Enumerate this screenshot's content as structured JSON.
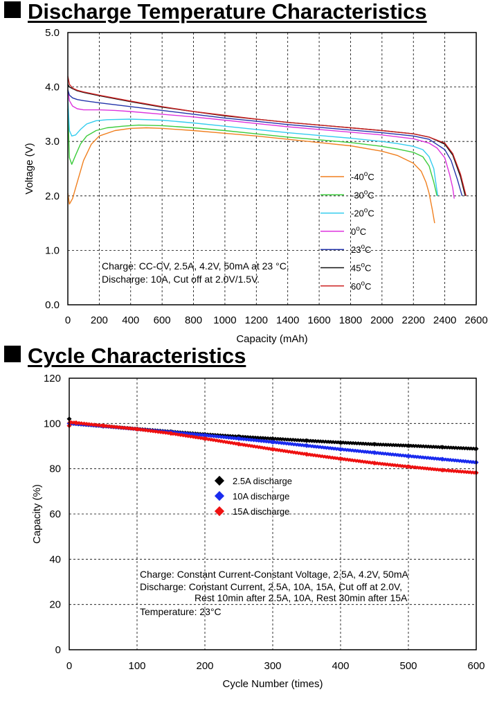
{
  "section1_title": "Discharge Temperature Characteristics",
  "section2_title": "Cycle Characteristics",
  "chart_data": [
    {
      "type": "line",
      "title": "Discharge Temperature Characteristics",
      "xlabel": "Capacity (mAh)",
      "ylabel": "Voltage (V)",
      "xlim": [
        0,
        2600
      ],
      "ylim": [
        0,
        5
      ],
      "xticks": [
        "0",
        "200",
        "400",
        "600",
        "800",
        "1000",
        "1200",
        "1400",
        "1600",
        "1800",
        "2000",
        "2200",
        "2400",
        "2600"
      ],
      "yticks": [
        "0.0",
        "1.0",
        "2.0",
        "3.0",
        "4.0",
        "5.0"
      ],
      "grid": "dashed",
      "legend_position": "right",
      "annotations": [
        "Charge: CC-CV, 2.5A, 4.2V, 50mA at 23 °C.",
        "Discharge: 10A, Cut off at 2.0V/1.5V."
      ],
      "series": [
        {
          "name": "-40",
          "unit": "C",
          "color": "#f07f1e",
          "x": [
            0,
            10,
            30,
            60,
            100,
            150,
            200,
            300,
            400,
            500,
            600,
            800,
            1000,
            1200,
            1400,
            1600,
            1800,
            2000,
            2100,
            2200,
            2250,
            2280,
            2300,
            2320,
            2335
          ],
          "y": [
            2.05,
            1.85,
            1.95,
            2.25,
            2.65,
            2.95,
            3.1,
            3.2,
            3.24,
            3.25,
            3.24,
            3.2,
            3.15,
            3.1,
            3.04,
            2.98,
            2.92,
            2.82,
            2.74,
            2.6,
            2.45,
            2.25,
            2.05,
            1.75,
            1.5
          ]
        },
        {
          "name": "-30",
          "unit": "C",
          "color": "#3ccc3c",
          "x": [
            0,
            10,
            25,
            50,
            80,
            120,
            180,
            250,
            350,
            450,
            600,
            800,
            1000,
            1200,
            1400,
            1600,
            1800,
            2000,
            2100,
            2200,
            2260,
            2300,
            2330,
            2350
          ],
          "y": [
            3.6,
            2.7,
            2.58,
            2.75,
            2.95,
            3.1,
            3.2,
            3.25,
            3.28,
            3.3,
            3.29,
            3.25,
            3.2,
            3.14,
            3.08,
            3.03,
            2.98,
            2.91,
            2.86,
            2.8,
            2.72,
            2.55,
            2.25,
            2.0
          ]
        },
        {
          "name": "-20",
          "unit": "C",
          "color": "#33ccee",
          "x": [
            0,
            10,
            25,
            50,
            80,
            120,
            180,
            250,
            400,
            600,
            800,
            1000,
            1200,
            1400,
            1600,
            1800,
            2000,
            2100,
            2200,
            2260,
            2300,
            2330,
            2345,
            2355
          ],
          "y": [
            3.8,
            3.2,
            3.1,
            3.12,
            3.22,
            3.32,
            3.38,
            3.4,
            3.41,
            3.39,
            3.34,
            3.28,
            3.22,
            3.16,
            3.11,
            3.06,
            3.0,
            2.96,
            2.91,
            2.85,
            2.72,
            2.5,
            2.2,
            2.0
          ]
        },
        {
          "name": "0",
          "unit": "C",
          "color": "#dd33dd",
          "x": [
            0,
            10,
            30,
            60,
            100,
            200,
            300,
            400,
            600,
            800,
            1000,
            1200,
            1400,
            1600,
            1800,
            2000,
            2200,
            2300,
            2350,
            2400,
            2430,
            2450,
            2460
          ],
          "y": [
            3.95,
            3.75,
            3.65,
            3.6,
            3.58,
            3.58,
            3.57,
            3.55,
            3.5,
            3.45,
            3.39,
            3.33,
            3.27,
            3.22,
            3.17,
            3.12,
            3.05,
            2.97,
            2.88,
            2.7,
            2.4,
            2.15,
            1.95
          ]
        },
        {
          "name": "23",
          "unit": "C",
          "color": "#2233aa",
          "x": [
            0,
            10,
            30,
            60,
            100,
            200,
            400,
            600,
            800,
            1000,
            1200,
            1400,
            1600,
            1800,
            2000,
            2200,
            2300,
            2400,
            2440,
            2480,
            2510
          ],
          "y": [
            3.95,
            3.85,
            3.8,
            3.77,
            3.75,
            3.71,
            3.64,
            3.57,
            3.5,
            3.43,
            3.37,
            3.31,
            3.26,
            3.21,
            3.16,
            3.1,
            3.04,
            2.85,
            2.65,
            2.3,
            2.0
          ]
        },
        {
          "name": "45",
          "unit": "C",
          "color": "#111111",
          "x": [
            0,
            10,
            30,
            60,
            100,
            200,
            400,
            600,
            800,
            1000,
            1200,
            1400,
            1600,
            1800,
            2000,
            2200,
            2300,
            2400,
            2450,
            2500,
            2530
          ],
          "y": [
            4.05,
            4.0,
            3.97,
            3.93,
            3.9,
            3.84,
            3.73,
            3.63,
            3.55,
            3.47,
            3.41,
            3.35,
            3.3,
            3.25,
            3.2,
            3.14,
            3.08,
            2.95,
            2.75,
            2.35,
            2.0
          ]
        },
        {
          "name": "60",
          "unit": "C",
          "color": "#cc2222",
          "x": [
            0,
            10,
            30,
            60,
            100,
            200,
            400,
            600,
            800,
            1000,
            1200,
            1400,
            1600,
            1800,
            2000,
            2200,
            2300,
            2400,
            2450,
            2500,
            2535
          ],
          "y": [
            4.2,
            4.05,
            3.98,
            3.94,
            3.91,
            3.85,
            3.74,
            3.64,
            3.55,
            3.48,
            3.41,
            3.35,
            3.3,
            3.25,
            3.2,
            3.14,
            3.08,
            2.97,
            2.78,
            2.4,
            2.0
          ]
        }
      ]
    },
    {
      "type": "scatter",
      "title": "Cycle Characteristics",
      "xlabel": "Cycle Number (times)",
      "ylabel": "Capacity (%)",
      "xlim": [
        0,
        600
      ],
      "ylim": [
        0,
        120
      ],
      "xticks": [
        "0",
        "100",
        "200",
        "300",
        "400",
        "500",
        "600"
      ],
      "yticks": [
        "0",
        "20",
        "40",
        "60",
        "80",
        "100",
        "120"
      ],
      "grid": "dashed",
      "legend_position": "center",
      "annotations": [
        "Charge: Constant Current-Constant Voltage, 2.5A, 4.2V, 50mA",
        "Discharge: Constant Current, 2.5A, 10A, 15A, Cut off at 2.0V,",
        "Rest 10min after 2.5A, 10A, Rest 30min after 15A",
        "Temperature: 23°C"
      ],
      "series": [
        {
          "name": "2.5A discharge",
          "color": "#000000",
          "x": [
            0,
            1,
            50,
            100,
            150,
            200,
            250,
            300,
            350,
            400,
            450,
            500,
            550,
            600
          ],
          "y": [
            102,
            100,
            98.8,
            97.6,
            96.4,
            95.2,
            94.2,
            93.3,
            92.4,
            91.6,
            90.8,
            90.2,
            89.5,
            88.8
          ]
        },
        {
          "name": "10A discharge",
          "color": "#1a2bee",
          "x": [
            0,
            50,
            100,
            150,
            200,
            250,
            300,
            350,
            400,
            450,
            500,
            550,
            600
          ],
          "y": [
            100,
            98.8,
            97.5,
            96.2,
            94.8,
            93.3,
            91.8,
            90.2,
            88.6,
            87.1,
            85.6,
            84.2,
            82.8
          ]
        },
        {
          "name": "15A discharge",
          "color": "#ee1111",
          "x": [
            0,
            1,
            10,
            50,
            100,
            150,
            200,
            250,
            300,
            350,
            400,
            450,
            500,
            550,
            600
          ],
          "y": [
            99,
            100.5,
            100.3,
            99,
            97.5,
            95.6,
            93.3,
            90.9,
            88.6,
            86.4,
            84.4,
            82.5,
            80.9,
            79.4,
            78.2
          ]
        }
      ]
    }
  ]
}
